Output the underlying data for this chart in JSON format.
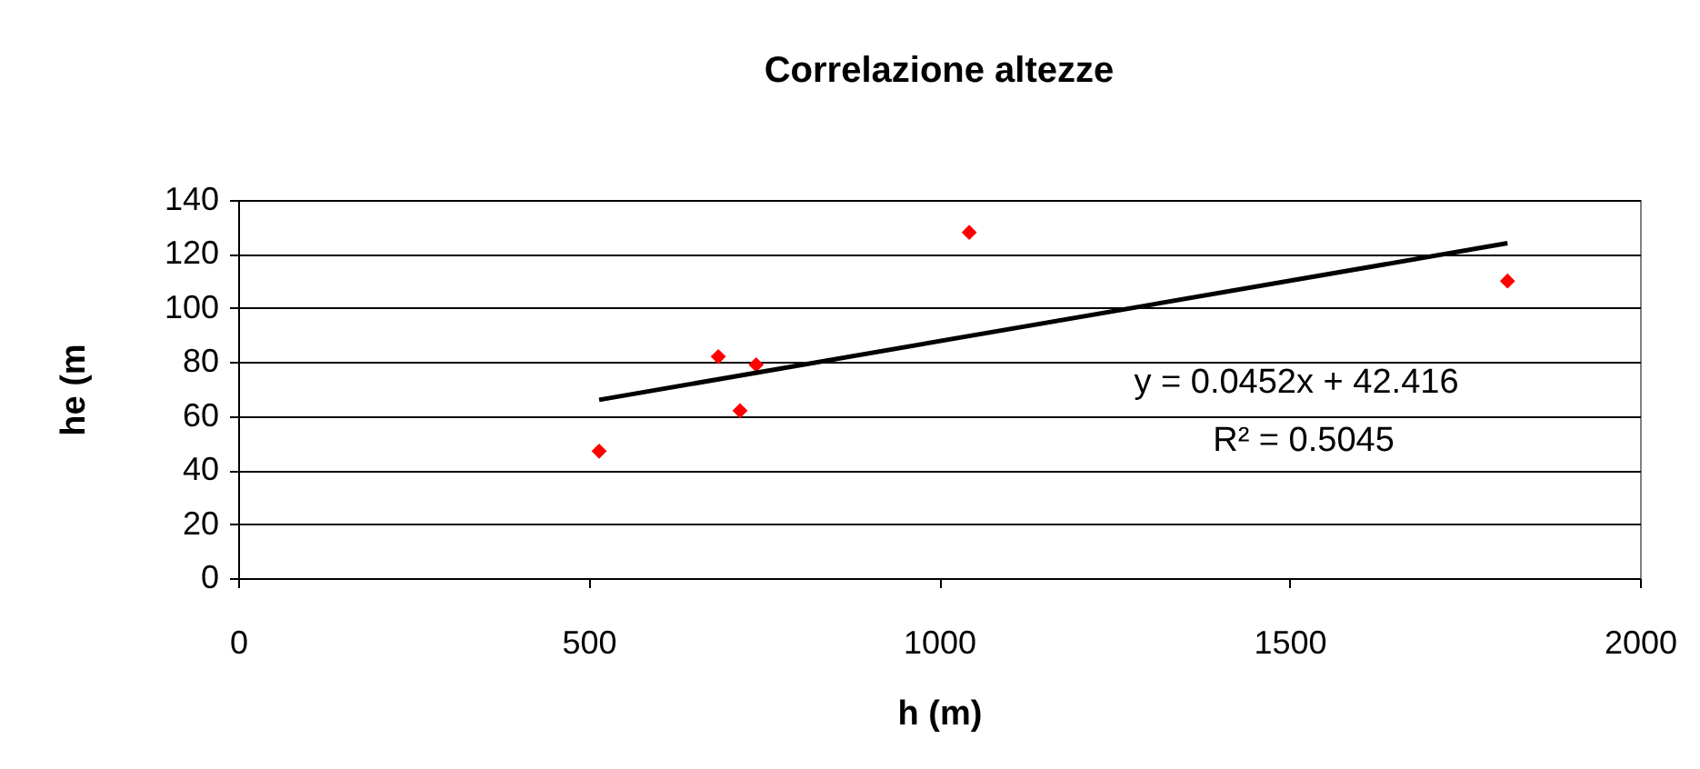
{
  "chart_data": {
    "type": "scatter",
    "title": "Correlazione altezze",
    "xlabel": "h     (m)",
    "ylabel": "he  (m",
    "xlim": [
      0,
      2000
    ],
    "xticks": [
      0,
      500,
      1000,
      1500,
      2000
    ],
    "ylim": [
      0,
      140
    ],
    "yticks": [
      0,
      20,
      40,
      60,
      80,
      100,
      120,
      140
    ],
    "grid": "y",
    "series": [
      {
        "marker": "diamond",
        "color": "#ff0000",
        "x": [
          515,
          685,
          716,
          739,
          1043,
          1811
        ],
        "values": [
          47,
          82,
          62,
          79,
          128,
          110
        ]
      },
      {
        "type": "line",
        "color": "#000000",
        "line_style": "solid",
        "x": [
          515,
          1811
        ],
        "values": [
          66,
          124
        ]
      }
    ],
    "annotations": [
      "y = 0.0452x + 42.416",
      "R² = 0.5045"
    ]
  }
}
